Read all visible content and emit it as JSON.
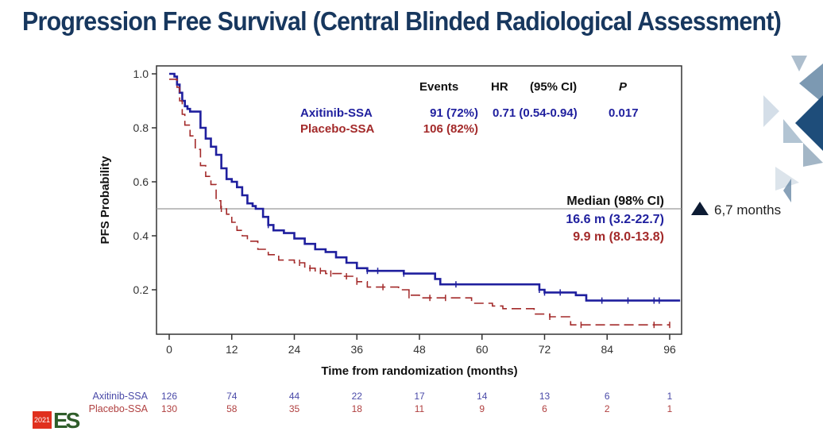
{
  "slide": {
    "title": "Progression Free Survival (Central Blinded Radiological Assessment)",
    "annotation": "6,7 months",
    "logo_year": "2021",
    "logo_text": "ES"
  },
  "colors": {
    "title": "#17375e",
    "axitinib": "#1f1f9e",
    "placebo": "#a32a2a",
    "axis": "#333333",
    "median_line": "#999999"
  },
  "chart_data": {
    "type": "line",
    "title": "Progression Free Survival (Central Blinded Radiological Assessment)",
    "xlabel": "Time from randomization (months)",
    "ylabel": "PFS Probability",
    "xlim": [
      -1.5,
      98
    ],
    "ylim": [
      0.04,
      1.03
    ],
    "xticks": [
      0,
      12,
      24,
      36,
      48,
      60,
      72,
      84,
      96
    ],
    "yticks": [
      0.2,
      0.4,
      0.6,
      0.8,
      1.0
    ],
    "ytick_labels": [
      "0.2",
      "0.4",
      "0.6",
      "0.8",
      "1.0"
    ],
    "reference_line_y": 0.5,
    "grid": false,
    "stats_table": {
      "headers": [
        "Events",
        "HR",
        "(95% CI)",
        "P"
      ],
      "rows": [
        {
          "arm": "Axitinib-SSA",
          "events": "91 (72%)",
          "hr_ci": "0.71 (0.54-0.94)",
          "p": "0.017"
        },
        {
          "arm": "Placebo-SSA",
          "events": "106 (82%)",
          "hr_ci": "",
          "p": ""
        }
      ]
    },
    "median_table": {
      "header": "Median (98% CI)",
      "rows": [
        {
          "arm": "Axitinib-SSA",
          "value": "16.6 m (3.2-22.7)"
        },
        {
          "arm": "Placebo-SSA",
          "value": "9.9 m (8.0-13.8)"
        }
      ]
    },
    "series": [
      {
        "name": "Axitinib-SSA",
        "style": "solid",
        "x": [
          0,
          1,
          1.5,
          2,
          2.5,
          3,
          3.5,
          4,
          5,
          6,
          7,
          8,
          9,
          10,
          11,
          12,
          13,
          14,
          15,
          16,
          16.6,
          18,
          19,
          20,
          22,
          24,
          26,
          28,
          30,
          32,
          34,
          36,
          38,
          42,
          45,
          49,
          51,
          52,
          60,
          70,
          71,
          72,
          74,
          78,
          80,
          90,
          98
        ],
        "y": [
          1.0,
          0.99,
          0.96,
          0.93,
          0.9,
          0.88,
          0.87,
          0.86,
          0.86,
          0.8,
          0.76,
          0.73,
          0.7,
          0.65,
          0.61,
          0.6,
          0.58,
          0.55,
          0.52,
          0.51,
          0.5,
          0.47,
          0.44,
          0.42,
          0.41,
          0.39,
          0.37,
          0.35,
          0.34,
          0.32,
          0.3,
          0.28,
          0.27,
          0.27,
          0.26,
          0.26,
          0.24,
          0.22,
          0.22,
          0.22,
          0.2,
          0.19,
          0.19,
          0.18,
          0.16,
          0.16,
          0.16
        ],
        "censor_x": [
          19,
          38,
          40,
          45,
          55,
          71,
          72,
          75,
          83,
          88,
          93,
          94
        ]
      },
      {
        "name": "Placebo-SSA",
        "style": "dashed",
        "x": [
          0,
          1,
          1.5,
          2,
          2.5,
          3,
          4,
          5,
          6,
          7,
          8,
          9,
          9.9,
          11,
          12,
          13,
          14,
          15,
          17,
          19,
          21,
          24,
          26,
          28,
          30,
          33,
          36,
          38,
          40,
          44,
          46,
          48,
          55,
          58,
          62,
          64,
          68,
          70,
          73,
          77,
          96
        ],
        "y": [
          0.98,
          0.98,
          0.95,
          0.9,
          0.85,
          0.81,
          0.77,
          0.72,
          0.66,
          0.62,
          0.59,
          0.53,
          0.5,
          0.48,
          0.45,
          0.42,
          0.4,
          0.38,
          0.35,
          0.33,
          0.31,
          0.3,
          0.28,
          0.27,
          0.26,
          0.25,
          0.23,
          0.21,
          0.21,
          0.2,
          0.18,
          0.17,
          0.17,
          0.15,
          0.14,
          0.13,
          0.13,
          0.11,
          0.1,
          0.07,
          0.07
        ],
        "censor_x": [
          10,
          25,
          27,
          29,
          31,
          34,
          36,
          41,
          46,
          50,
          53,
          73,
          79,
          93,
          96
        ]
      }
    ],
    "risk_table": {
      "times": [
        0,
        12,
        24,
        36,
        48,
        60,
        72,
        84,
        96
      ],
      "rows": [
        {
          "name": "Axitinib-SSA",
          "values": [
            126,
            74,
            44,
            22,
            17,
            14,
            13,
            6,
            1
          ]
        },
        {
          "name": "Placebo-SSA",
          "values": [
            130,
            58,
            35,
            18,
            11,
            9,
            6,
            2,
            1
          ]
        }
      ]
    }
  }
}
